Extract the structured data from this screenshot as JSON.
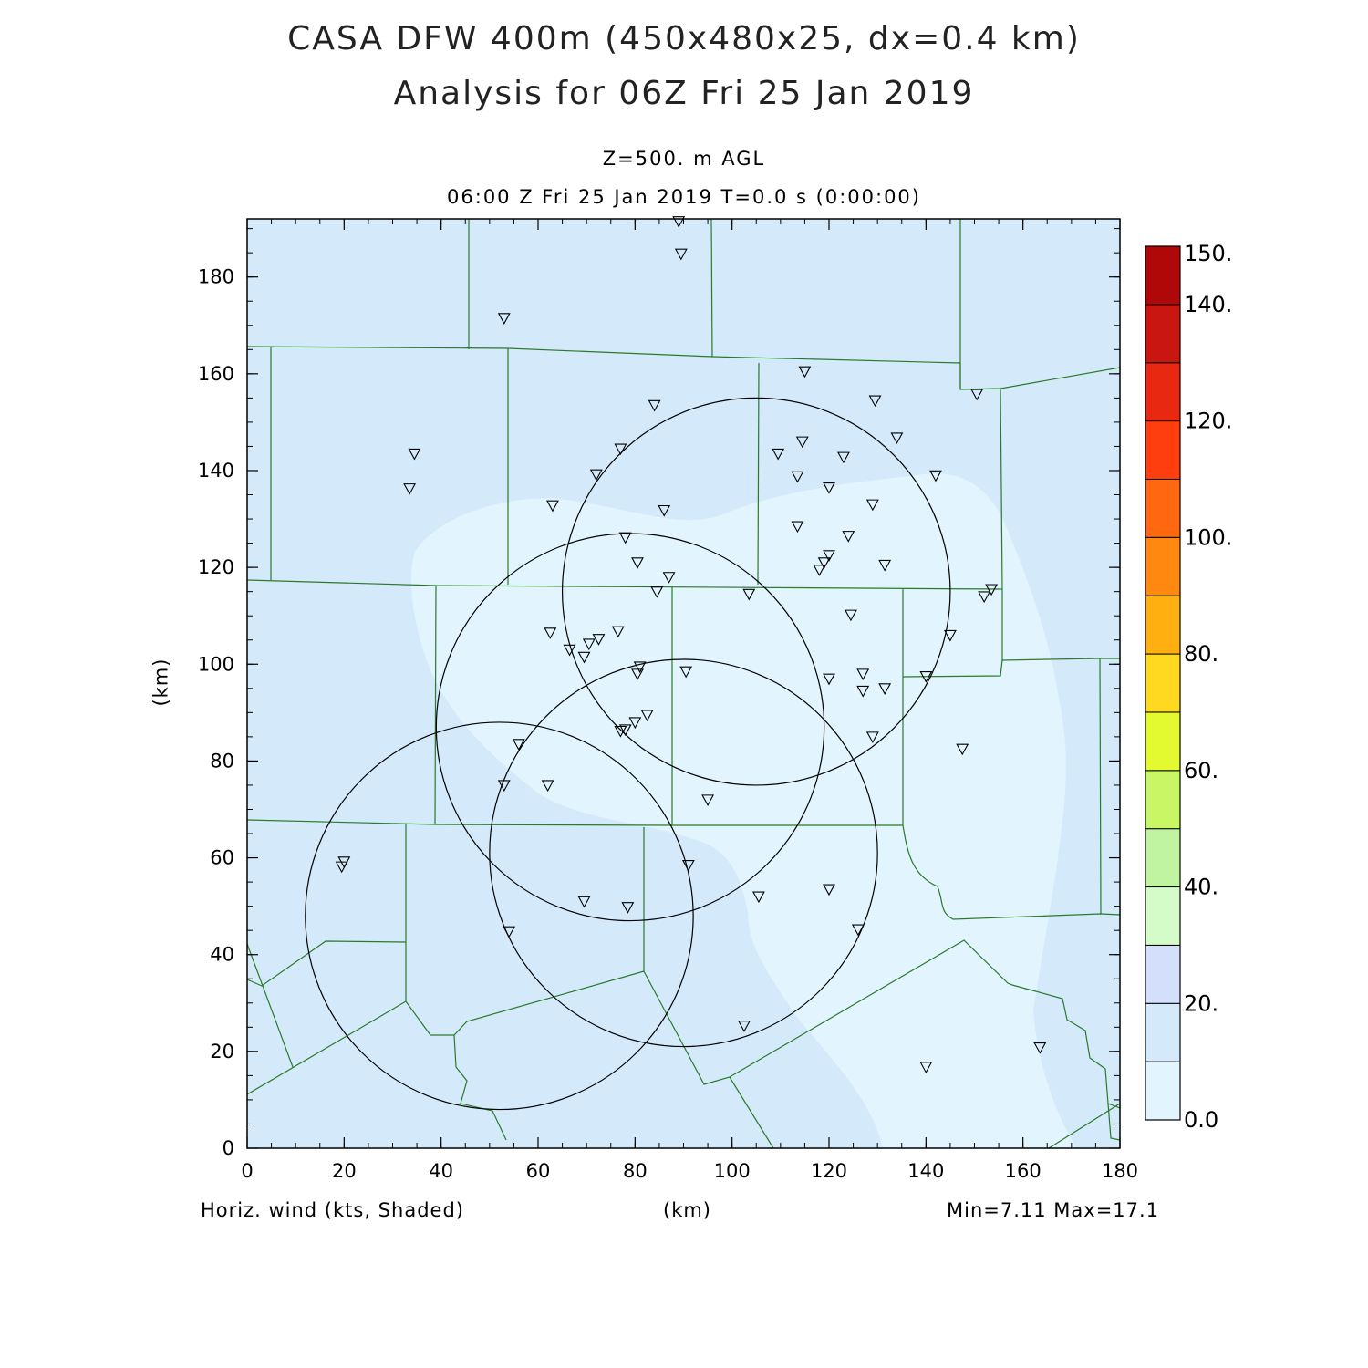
{
  "title": {
    "line1": "CASA DFW 400m (450x480x25, dx=0.4 km)",
    "line2": "Analysis for 06Z Fri 25 Jan 2019"
  },
  "subtitle": {
    "level": "Z=500. m AGL",
    "time": "06:00 Z Fri 25 Jan 2019    T=0.0 s (0:00:00)"
  },
  "field_label": "Horiz. wind (kts, Shaded)",
  "x_unit": "(km)",
  "y_unit": "(km)",
  "minmax": "Min=7.11 Max=17.1",
  "colors": {
    "shade_low": "#e2f4fd",
    "shade_mid": "#d4eafb",
    "county_lines": "#2a7a2a",
    "radar_rings": "#000000"
  },
  "map_data": {
    "x_range_km": [
      0,
      180
    ],
    "y_range_km": [
      0,
      192
    ],
    "x_ticks": [
      0,
      20,
      40,
      60,
      80,
      100,
      120,
      140,
      160,
      180
    ],
    "y_ticks": [
      0,
      20,
      40,
      60,
      80,
      100,
      120,
      140,
      160,
      180
    ],
    "radar_rings_km": [
      {
        "cx": 105,
        "cy": 115,
        "r": 40
      },
      {
        "cx": 79,
        "cy": 87,
        "r": 40
      },
      {
        "cx": 90,
        "cy": 61,
        "r": 40
      },
      {
        "cx": 52,
        "cy": 48,
        "r": 40
      }
    ],
    "station_markers_km": [
      [
        89,
        191.5
      ],
      [
        89.5,
        184.8
      ],
      [
        53,
        171.5
      ],
      [
        34.5,
        143.5
      ],
      [
        33.5,
        136.3
      ],
      [
        63,
        132.8
      ],
      [
        72,
        139.2
      ],
      [
        77,
        144.5
      ],
      [
        84,
        153.5
      ],
      [
        86,
        131.8
      ],
      [
        78,
        126.2
      ],
      [
        80.5,
        121
      ],
      [
        87,
        118
      ],
      [
        84.5,
        115
      ],
      [
        103.5,
        114.5
      ],
      [
        115,
        160.5
      ],
      [
        129.5,
        154.5
      ],
      [
        134,
        146.8
      ],
      [
        114.5,
        146
      ],
      [
        109.5,
        143.5
      ],
      [
        123,
        142.8
      ],
      [
        113.5,
        138.8
      ],
      [
        120,
        136.5
      ],
      [
        142,
        139
      ],
      [
        129,
        133
      ],
      [
        113.5,
        128.5
      ],
      [
        124,
        126.5
      ],
      [
        120,
        122.5
      ],
      [
        119,
        121
      ],
      [
        118,
        119.5
      ],
      [
        131.5,
        120.5
      ],
      [
        150.5,
        155.8
      ],
      [
        153.5,
        115.5
      ],
      [
        152,
        114
      ],
      [
        124.5,
        110.2
      ],
      [
        145,
        106
      ],
      [
        62.5,
        106.5
      ],
      [
        76.5,
        106.8
      ],
      [
        72.5,
        105.2
      ],
      [
        70.5,
        104.2
      ],
      [
        66.5,
        103
      ],
      [
        69.5,
        101.5
      ],
      [
        81,
        99.5
      ],
      [
        90.5,
        98.5
      ],
      [
        80.5,
        98
      ],
      [
        120,
        97
      ],
      [
        127,
        98
      ],
      [
        140,
        97.5
      ],
      [
        127,
        94.5
      ],
      [
        131.5,
        95
      ],
      [
        82.5,
        89.5
      ],
      [
        80,
        88
      ],
      [
        78,
        86.5
      ],
      [
        77,
        86.2
      ],
      [
        129,
        85
      ],
      [
        56,
        83.5
      ],
      [
        147.5,
        82.5
      ],
      [
        53,
        75
      ],
      [
        62,
        75
      ],
      [
        95,
        72
      ],
      [
        20,
        59.2
      ],
      [
        19.5,
        58.2
      ],
      [
        91,
        58.5
      ],
      [
        120,
        53.5
      ],
      [
        105.5,
        52
      ],
      [
        69.5,
        51
      ],
      [
        78.5,
        49.8
      ],
      [
        126,
        45.2
      ],
      [
        54,
        44.8
      ],
      [
        102.5,
        25.3
      ],
      [
        163.5,
        20.8
      ],
      [
        140,
        16.8
      ]
    ]
  },
  "colorbar": {
    "labels": [
      "0.0",
      "20.",
      "40.",
      "60.",
      "80.",
      "100.",
      "120.",
      "140.",
      "150."
    ],
    "colors": [
      "#e2f4fd",
      "#d4eafb",
      "#d4e0fb",
      "#d4fcc8",
      "#c0f4a0",
      "#c8f664",
      "#e4fa30",
      "#ffd820",
      "#ffb010",
      "#ff8810",
      "#ff6810",
      "#ff3e10",
      "#e82810",
      "#ca1610",
      "#b00808"
    ]
  }
}
